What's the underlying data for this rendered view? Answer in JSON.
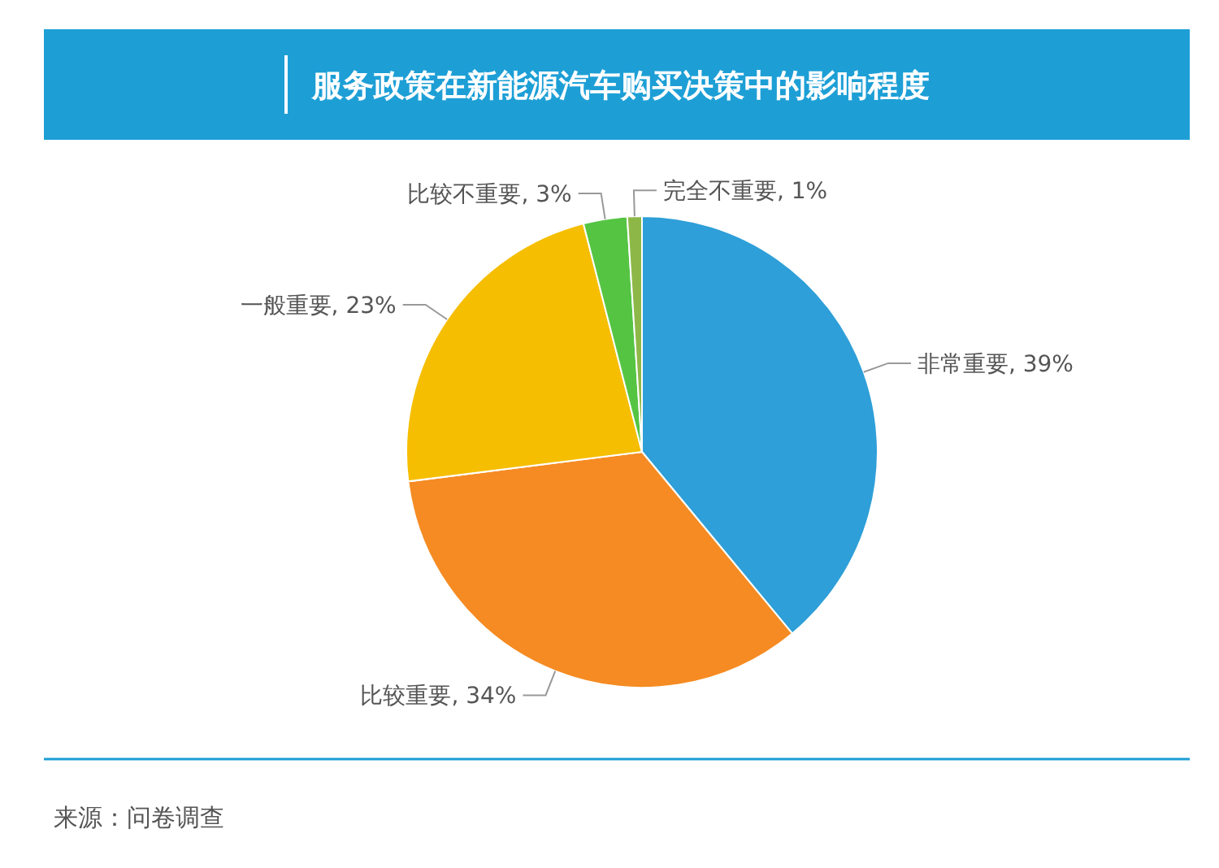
{
  "chart_data": {
    "type": "pie",
    "title": "服务政策在新能源汽车购买决策中的影响程度",
    "categories": [
      "非常重要",
      "比较重要",
      "一般重要",
      "比较不重要",
      "完全不重要"
    ],
    "values": [
      39,
      34,
      23,
      3,
      1
    ],
    "colors": [
      "#2e9fd8",
      "#f58b22",
      "#f6be00",
      "#55c443",
      "#8db848"
    ],
    "value_labels": [
      "39%",
      "34%",
      "23%",
      "3%",
      "1%"
    ],
    "annotations": [
      "来源：问卷调查"
    ]
  }
}
